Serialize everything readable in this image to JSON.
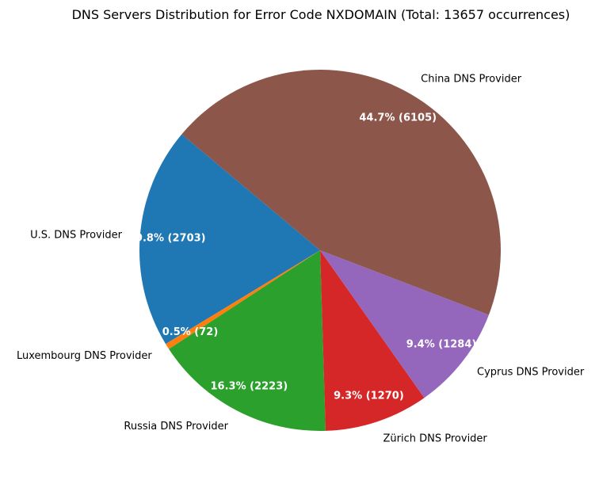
{
  "chart_data": {
    "type": "pie",
    "title": "DNS Servers Distribution for Error Code NXDOMAIN (Total: 13657 occurrences)",
    "start_angle_deg": 140,
    "direction": "counterclockwise",
    "slices": [
      {
        "label": "U.S. DNS Provider",
        "value": 2703,
        "percent_label": "19.8% (2703)",
        "color": "#1f77b4"
      },
      {
        "label": "Luxembourg DNS Provider",
        "value": 72,
        "percent_label": "0.5% (72)",
        "color": "#ff7f0e"
      },
      {
        "label": "Russia DNS Provider",
        "value": 2223,
        "percent_label": "16.3% (2223)",
        "color": "#2ca02c"
      },
      {
        "label": "Zürich DNS Provider",
        "value": 1270,
        "percent_label": "9.3% (1270)",
        "color": "#d62728"
      },
      {
        "label": "Cyprus DNS Provider",
        "value": 1284,
        "percent_label": "9.4% (1284)",
        "color": "#9467bd"
      },
      {
        "label": "China DNS Provider",
        "value": 6105,
        "percent_label": "44.7% (6105)",
        "color": "#8c564b"
      }
    ]
  }
}
